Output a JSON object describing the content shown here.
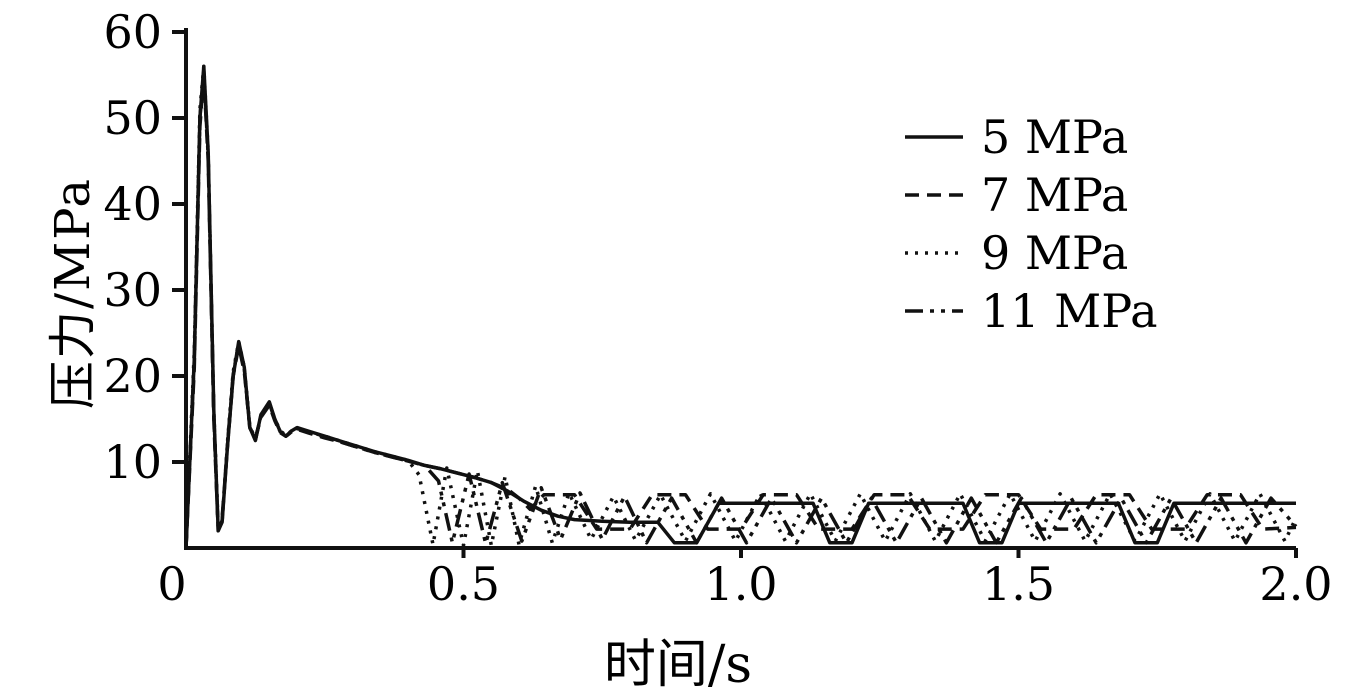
{
  "chart_data": {
    "type": "line",
    "title": "",
    "xlabel": "时间/s",
    "ylabel": "压力/MPa",
    "xlim": [
      0,
      2.0
    ],
    "ylim": [
      0,
      60
    ],
    "xticks": [
      0,
      0.5,
      1.0,
      1.5,
      2.0
    ],
    "xtick_labels": [
      "0",
      "0.5",
      "1.0",
      "1.5",
      "2.0"
    ],
    "yticks": [
      10,
      20,
      30,
      40,
      50,
      60
    ],
    "ytick_labels": [
      "10",
      "20",
      "30",
      "40",
      "50",
      "60"
    ],
    "grid": false,
    "legend_position": "upper right",
    "line_color": "#111111",
    "series": [
      {
        "name": "5 MPa",
        "style": "solid",
        "dash": [],
        "points": [
          [
            0,
            0
          ],
          [
            0.015,
            22
          ],
          [
            0.025,
            50
          ],
          [
            0.032,
            56
          ],
          [
            0.04,
            46
          ],
          [
            0.05,
            16
          ],
          [
            0.058,
            2
          ],
          [
            0.065,
            3
          ],
          [
            0.075,
            12
          ],
          [
            0.085,
            20
          ],
          [
            0.095,
            24
          ],
          [
            0.105,
            21
          ],
          [
            0.115,
            14
          ],
          [
            0.125,
            12.5
          ],
          [
            0.135,
            15.5
          ],
          [
            0.15,
            17
          ],
          [
            0.16,
            15
          ],
          [
            0.17,
            13.5
          ],
          [
            0.18,
            13
          ],
          [
            0.19,
            13.6
          ],
          [
            0.2,
            14
          ],
          [
            0.22,
            13.6
          ],
          [
            0.25,
            13
          ],
          [
            0.28,
            12.4
          ],
          [
            0.31,
            11.8
          ],
          [
            0.34,
            11.2
          ],
          [
            0.37,
            10.7
          ],
          [
            0.4,
            10.2
          ],
          [
            0.43,
            9.6
          ],
          [
            0.46,
            9.2
          ],
          [
            0.49,
            8.7
          ],
          [
            0.52,
            8.2
          ],
          [
            0.55,
            7.6
          ],
          [
            0.58,
            6.6
          ],
          [
            0.61,
            5.4
          ],
          [
            0.64,
            4.4
          ],
          [
            0.67,
            3.7
          ],
          [
            0.7,
            3.3
          ],
          [
            0.75,
            3.1
          ],
          [
            0.8,
            3.0
          ],
          [
            0.85,
            3.0
          ],
          [
            0.88,
            0.6
          ],
          [
            0.92,
            0.6
          ],
          [
            0.96,
            5.2
          ],
          [
            1.13,
            5.2
          ],
          [
            1.16,
            0.6
          ],
          [
            1.2,
            0.6
          ],
          [
            1.23,
            5.2
          ],
          [
            1.4,
            5.2
          ],
          [
            1.43,
            0.6
          ],
          [
            1.47,
            0.6
          ],
          [
            1.5,
            5.2
          ],
          [
            1.68,
            5.2
          ],
          [
            1.71,
            0.6
          ],
          [
            1.75,
            0.6
          ],
          [
            1.78,
            5.2
          ],
          [
            2.0,
            5.2
          ]
        ]
      },
      {
        "name": "7 MPa",
        "style": "dashed",
        "dash": [
          14,
          8
        ],
        "points": [
          [
            0,
            0
          ],
          [
            0.015,
            21
          ],
          [
            0.025,
            49
          ],
          [
            0.032,
            55
          ],
          [
            0.04,
            45
          ],
          [
            0.05,
            15
          ],
          [
            0.058,
            2
          ],
          [
            0.065,
            3.5
          ],
          [
            0.075,
            12
          ],
          [
            0.085,
            20
          ],
          [
            0.095,
            23.5
          ],
          [
            0.105,
            20.5
          ],
          [
            0.115,
            14
          ],
          [
            0.125,
            12.8
          ],
          [
            0.135,
            15.2
          ],
          [
            0.15,
            16.6
          ],
          [
            0.16,
            14.8
          ],
          [
            0.17,
            13.4
          ],
          [
            0.18,
            13
          ],
          [
            0.19,
            13.5
          ],
          [
            0.2,
            13.8
          ],
          [
            0.22,
            13.4
          ],
          [
            0.25,
            12.8
          ],
          [
            0.28,
            12.3
          ],
          [
            0.31,
            11.7
          ],
          [
            0.34,
            11.1
          ],
          [
            0.37,
            10.6
          ],
          [
            0.4,
            10.1
          ],
          [
            0.43,
            9.6
          ],
          [
            0.46,
            9.2
          ],
          [
            0.49,
            8.7
          ],
          [
            0.52,
            8.2
          ],
          [
            0.55,
            7.6
          ],
          [
            0.58,
            6.8
          ],
          [
            0.6,
            5.8
          ],
          [
            0.62,
            4.5
          ],
          [
            0.645,
            6.2
          ],
          [
            0.7,
            6.2
          ],
          [
            0.74,
            2.2
          ],
          [
            0.8,
            2.2
          ],
          [
            0.84,
            6.2
          ],
          [
            0.9,
            6.2
          ],
          [
            0.94,
            2.2
          ],
          [
            1.0,
            2.2
          ],
          [
            1.04,
            6.2
          ],
          [
            1.1,
            6.2
          ],
          [
            1.14,
            2.2
          ],
          [
            1.2,
            2.2
          ],
          [
            1.24,
            6.2
          ],
          [
            1.3,
            6.2
          ],
          [
            1.34,
            2.2
          ],
          [
            1.4,
            2.2
          ],
          [
            1.44,
            6.2
          ],
          [
            1.5,
            6.2
          ],
          [
            1.54,
            2.2
          ],
          [
            1.6,
            2.2
          ],
          [
            1.64,
            6.2
          ],
          [
            1.7,
            6.2
          ],
          [
            1.74,
            2.2
          ],
          [
            1.8,
            2.2
          ],
          [
            1.84,
            6.2
          ],
          [
            1.9,
            6.2
          ],
          [
            1.94,
            2.2
          ],
          [
            2.0,
            2.4
          ]
        ]
      },
      {
        "name": "9 MPa",
        "style": "dotted",
        "dash": [
          3,
          7
        ],
        "points": [
          [
            0,
            0
          ],
          [
            0.015,
            23
          ],
          [
            0.025,
            51
          ],
          [
            0.032,
            56
          ],
          [
            0.04,
            46
          ],
          [
            0.05,
            16
          ],
          [
            0.058,
            2.5
          ],
          [
            0.065,
            3
          ],
          [
            0.075,
            12.5
          ],
          [
            0.085,
            20.5
          ],
          [
            0.095,
            24
          ],
          [
            0.105,
            21
          ],
          [
            0.115,
            14.2
          ],
          [
            0.125,
            12.6
          ],
          [
            0.135,
            15.4
          ],
          [
            0.15,
            16.8
          ],
          [
            0.16,
            15
          ],
          [
            0.17,
            13.6
          ],
          [
            0.18,
            13.1
          ],
          [
            0.19,
            13.6
          ],
          [
            0.2,
            14
          ],
          [
            0.22,
            13.5
          ],
          [
            0.25,
            13
          ],
          [
            0.28,
            12.4
          ],
          [
            0.31,
            11.8
          ],
          [
            0.34,
            11.2
          ],
          [
            0.37,
            10.7
          ],
          [
            0.4,
            10.2
          ],
          [
            0.42,
            8.5
          ],
          [
            0.445,
            0.4
          ],
          [
            0.47,
            9.3
          ],
          [
            0.5,
            0.3
          ],
          [
            0.525,
            9.0
          ],
          [
            0.55,
            0.3
          ],
          [
            0.575,
            8.3
          ],
          [
            0.6,
            0.4
          ],
          [
            0.63,
            7.2
          ],
          [
            0.66,
            0.6
          ],
          [
            0.69,
            6.4
          ],
          [
            0.73,
            1.0
          ],
          [
            0.77,
            6.0
          ],
          [
            0.81,
            0.9
          ],
          [
            0.855,
            6.2
          ],
          [
            0.9,
            0.8
          ],
          [
            0.945,
            6.3
          ],
          [
            0.99,
            0.8
          ],
          [
            1.035,
            6.3
          ],
          [
            1.08,
            0.8
          ],
          [
            1.125,
            6.3
          ],
          [
            1.17,
            0.8
          ],
          [
            1.215,
            6.3
          ],
          [
            1.26,
            0.8
          ],
          [
            1.305,
            6.3
          ],
          [
            1.35,
            0.8
          ],
          [
            1.395,
            6.3
          ],
          [
            1.44,
            0.8
          ],
          [
            1.485,
            6.3
          ],
          [
            1.53,
            0.8
          ],
          [
            1.575,
            6.3
          ],
          [
            1.62,
            0.8
          ],
          [
            1.665,
            6.3
          ],
          [
            1.71,
            0.8
          ],
          [
            1.755,
            6.3
          ],
          [
            1.8,
            0.8
          ],
          [
            1.845,
            6.3
          ],
          [
            1.89,
            0.8
          ],
          [
            1.935,
            6.3
          ],
          [
            1.98,
            0.8
          ],
          [
            2.0,
            3.5
          ]
        ]
      },
      {
        "name": "11 MPa",
        "style": "dash-dot-dot",
        "dash": [
          18,
          7,
          4,
          7,
          4,
          7
        ],
        "points": [
          [
            0,
            0
          ],
          [
            0.015,
            22
          ],
          [
            0.025,
            50
          ],
          [
            0.032,
            55.5
          ],
          [
            0.04,
            45.5
          ],
          [
            0.05,
            15.5
          ],
          [
            0.058,
            2
          ],
          [
            0.065,
            3.2
          ],
          [
            0.075,
            12.2
          ],
          [
            0.085,
            20.2
          ],
          [
            0.095,
            23.8
          ],
          [
            0.105,
            20.8
          ],
          [
            0.115,
            14
          ],
          [
            0.125,
            12.6
          ],
          [
            0.135,
            15.3
          ],
          [
            0.15,
            16.9
          ],
          [
            0.16,
            14.9
          ],
          [
            0.17,
            13.5
          ],
          [
            0.18,
            13
          ],
          [
            0.19,
            13.5
          ],
          [
            0.2,
            13.9
          ],
          [
            0.22,
            13.5
          ],
          [
            0.25,
            12.9
          ],
          [
            0.28,
            12.3
          ],
          [
            0.31,
            11.7
          ],
          [
            0.34,
            11.1
          ],
          [
            0.37,
            10.6
          ],
          [
            0.4,
            10.1
          ],
          [
            0.43,
            9.6
          ],
          [
            0.455,
            7.8
          ],
          [
            0.48,
            0.6
          ],
          [
            0.51,
            8.6
          ],
          [
            0.54,
            0.5
          ],
          [
            0.57,
            7.6
          ],
          [
            0.605,
            0.8
          ],
          [
            0.64,
            7.0
          ],
          [
            0.675,
            1.0
          ],
          [
            0.71,
            6.4
          ],
          [
            0.75,
            1.0
          ],
          [
            0.79,
            6.0
          ],
          [
            0.83,
            0.6
          ],
          [
            0.875,
            5.8
          ],
          [
            0.92,
            0.6
          ],
          [
            0.965,
            5.8
          ],
          [
            1.01,
            0.6
          ],
          [
            1.055,
            5.8
          ],
          [
            1.1,
            0.6
          ],
          [
            1.145,
            5.8
          ],
          [
            1.19,
            0.6
          ],
          [
            1.235,
            5.8
          ],
          [
            1.28,
            0.6
          ],
          [
            1.325,
            5.8
          ],
          [
            1.37,
            0.6
          ],
          [
            1.415,
            5.8
          ],
          [
            1.46,
            0.6
          ],
          [
            1.505,
            5.8
          ],
          [
            1.55,
            0.6
          ],
          [
            1.595,
            5.8
          ],
          [
            1.64,
            0.6
          ],
          [
            1.685,
            5.8
          ],
          [
            1.73,
            0.6
          ],
          [
            1.775,
            5.8
          ],
          [
            1.82,
            0.6
          ],
          [
            1.865,
            5.8
          ],
          [
            1.91,
            0.6
          ],
          [
            1.955,
            5.8
          ],
          [
            2.0,
            2.5
          ]
        ]
      }
    ]
  }
}
